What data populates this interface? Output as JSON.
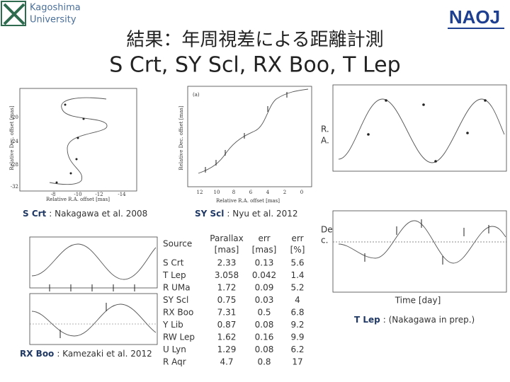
{
  "header": {
    "university": [
      "Kagoshima",
      "University"
    ],
    "logo": "NAOJ",
    "title": "結果：年周視差による距離計測",
    "subtitle": "S Crt, SY Scl, RX Boo, T Lep"
  },
  "plots": {
    "s_crt": {
      "ylabel": "Relative Dec. offset [mas]",
      "xlabel": "Relative R.A. offset [mas]",
      "yticks": [
        "-20",
        "-24",
        "-28",
        "-32"
      ],
      "xticks": [
        "-8",
        "-10",
        "-12",
        "-14"
      ]
    },
    "sy_scl": {
      "panel": "(a)",
      "ylabel": "Relative Dec. offset [mas]",
      "xlabel": "Relative R.A. offset [mas]",
      "xticks": [
        "12",
        "10",
        "8",
        "6",
        "4",
        "2",
        "0"
      ]
    },
    "t_lep": {
      "ra_label": [
        "R.",
        "A."
      ],
      "dec_label": [
        "De",
        "c."
      ],
      "xlabel": "Time [day]"
    }
  },
  "captions": [
    {
      "name": "S Crt",
      "text": ": Nakagawa et al. 2008"
    },
    {
      "name": "SY Scl",
      "text": ":  Nyu et al. 2012"
    },
    {
      "name": "RX Boo",
      "text": ":  Kamezaki et al. 2012"
    },
    {
      "name": "T Lep",
      "text": ": (Nakagawa in prep.)"
    }
  ],
  "table": {
    "header": [
      "Source",
      "Parallax [mas]",
      "err [mas]",
      "err [%]"
    ],
    "rows": [
      [
        "S Crt",
        2.33,
        0.13,
        5.6
      ],
      [
        "T Lep",
        3.058,
        0.042,
        1.4
      ],
      [
        "R UMa",
        1.72,
        0.09,
        5.2
      ],
      [
        "SY Scl",
        0.75,
        0.03,
        4
      ],
      [
        "RX Boo",
        7.31,
        0.5,
        6.8
      ],
      [
        "Y Lib",
        0.87,
        0.08,
        9.2
      ],
      [
        "RW Lep",
        1.62,
        0.16,
        9.9
      ],
      [
        "U Lyn",
        1.29,
        0.08,
        6.2
      ],
      [
        "R Aqr",
        4.7,
        0.8,
        17
      ]
    ]
  }
}
